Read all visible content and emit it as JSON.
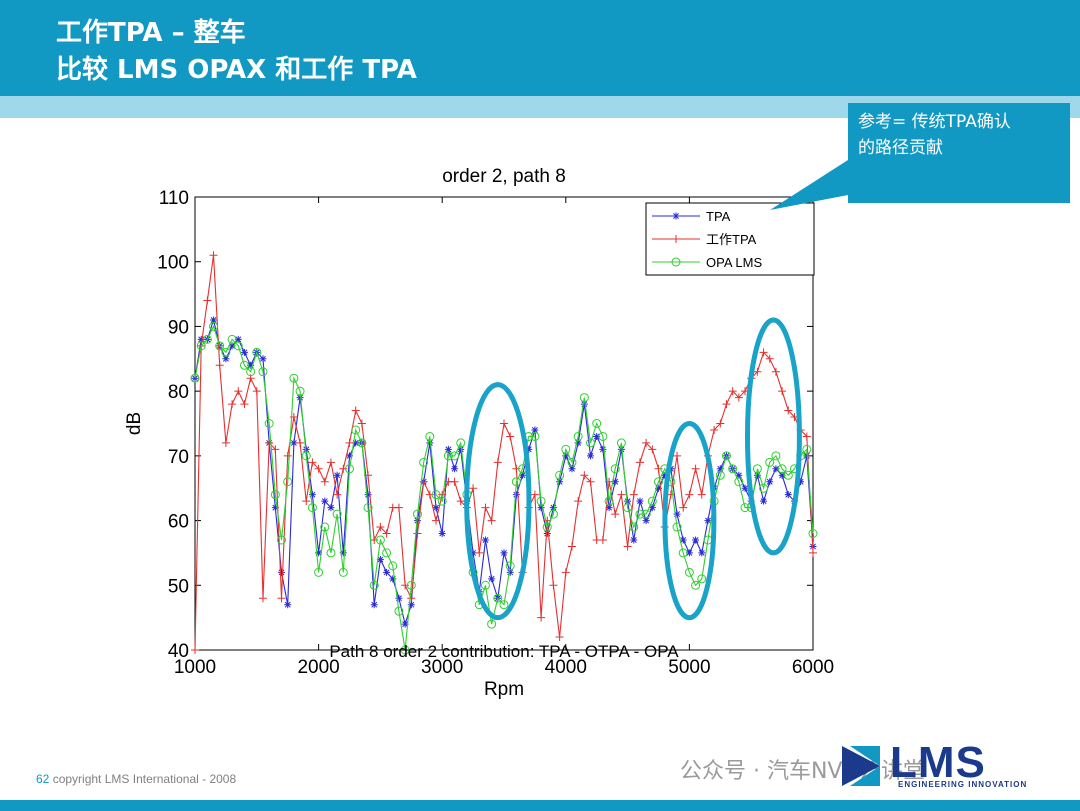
{
  "header": {
    "title_line1": "工作TPA – 整车",
    "title_line2": "比较 LMS OPAX 和工作 TPA"
  },
  "callout": {
    "text_line1": "参考= 传统TPA确认",
    "text_line2": "的路径贡献"
  },
  "colors": {
    "brand": "#1199c4",
    "brand_light": "#9fd8ea",
    "tpa": "#2a2ad8",
    "work_tpa": "#e53030",
    "opa_lms": "#2fcf2f",
    "highlight": "#1aa3c8"
  },
  "chart_data": {
    "type": "line",
    "title": "order 2, path 8",
    "xlabel": "Rpm",
    "ylabel": "dB",
    "xlim": [
      1000,
      6000
    ],
    "ylim": [
      40,
      110
    ],
    "xticks": [
      1000,
      2000,
      3000,
      4000,
      5000,
      6000
    ],
    "yticks": [
      40,
      50,
      60,
      70,
      80,
      90,
      100,
      110
    ],
    "legend_position": "top-right",
    "overlapped_caption": "Path 8 order 2 contribution: TPA - OTPA - OPA",
    "series": [
      {
        "name": "TPA",
        "marker": "*",
        "x": [
          1000,
          1050,
          1100,
          1150,
          1200,
          1250,
          1300,
          1350,
          1400,
          1450,
          1500,
          1550,
          1600,
          1650,
          1700,
          1750,
          1800,
          1850,
          1900,
          1950,
          2000,
          2050,
          2100,
          2150,
          2200,
          2250,
          2300,
          2350,
          2400,
          2450,
          2500,
          2550,
          2600,
          2650,
          2700,
          2750,
          2800,
          2850,
          2900,
          2950,
          3000,
          3050,
          3100,
          3150,
          3200,
          3250,
          3300,
          3350,
          3400,
          3450,
          3500,
          3550,
          3600,
          3650,
          3700,
          3750,
          3800,
          3850,
          3900,
          3950,
          4000,
          4050,
          4100,
          4150,
          4200,
          4250,
          4300,
          4350,
          4400,
          4450,
          4500,
          4550,
          4600,
          4650,
          4700,
          4750,
          4800,
          4850,
          4900,
          4950,
          5000,
          5050,
          5100,
          5150,
          5200,
          5250,
          5300,
          5350,
          5400,
          5450,
          5500,
          5550,
          5600,
          5650,
          5700,
          5750,
          5800,
          5850,
          5900,
          5950,
          6000
        ],
        "y": [
          82,
          88,
          88,
          91,
          87,
          85,
          87,
          88,
          86,
          84,
          86,
          85,
          72,
          62,
          52,
          47,
          72,
          79,
          71,
          64,
          55,
          63,
          62,
          67,
          55,
          70,
          72,
          72,
          64,
          47,
          54,
          52,
          51,
          48,
          44,
          47,
          60,
          66,
          72,
          62,
          58,
          71,
          68,
          71,
          63,
          55,
          49,
          57,
          51,
          48,
          55,
          52,
          64,
          67,
          71,
          74,
          62,
          58,
          62,
          66,
          70,
          68,
          72,
          78,
          70,
          73,
          71,
          62,
          66,
          71,
          63,
          57,
          63,
          60,
          62,
          65,
          67,
          68,
          61,
          57,
          55,
          57,
          55,
          60,
          65,
          68,
          70,
          68,
          67,
          65,
          63,
          67,
          63,
          66,
          68,
          67,
          64,
          63,
          66,
          70,
          56
        ]
      },
      {
        "name": "工作TPA",
        "marker": "+",
        "x": [
          1000,
          1050,
          1100,
          1150,
          1200,
          1250,
          1300,
          1350,
          1400,
          1450,
          1500,
          1550,
          1600,
          1650,
          1700,
          1750,
          1800,
          1850,
          1900,
          1950,
          2000,
          2050,
          2100,
          2150,
          2200,
          2250,
          2300,
          2350,
          2400,
          2450,
          2500,
          2550,
          2600,
          2650,
          2700,
          2750,
          2800,
          2850,
          2900,
          2950,
          3000,
          3050,
          3100,
          3150,
          3200,
          3250,
          3300,
          3350,
          3400,
          3450,
          3500,
          3550,
          3600,
          3650,
          3700,
          3750,
          3800,
          3850,
          3900,
          3950,
          4000,
          4050,
          4100,
          4150,
          4200,
          4250,
          4300,
          4350,
          4400,
          4450,
          4500,
          4550,
          4600,
          4650,
          4700,
          4750,
          4800,
          4850,
          4900,
          4950,
          5000,
          5050,
          5100,
          5150,
          5200,
          5250,
          5300,
          5350,
          5400,
          5450,
          5500,
          5550,
          5600,
          5650,
          5700,
          5750,
          5800,
          5850,
          5900,
          5950,
          6000
        ],
        "y": [
          40,
          87,
          94,
          101,
          84,
          72,
          78,
          80,
          78,
          82,
          80,
          48,
          72,
          71,
          48,
          70,
          76,
          72,
          63,
          69,
          68,
          66,
          69,
          64,
          68,
          72,
          77,
          75,
          67,
          57,
          59,
          58,
          62,
          62,
          50,
          48,
          58,
          66,
          64,
          60,
          64,
          66,
          66,
          63,
          62,
          65,
          55,
          62,
          60,
          69,
          75,
          73,
          68,
          52,
          62,
          64,
          45,
          60,
          50,
          42,
          52,
          56,
          63,
          67,
          66,
          57,
          57,
          66,
          61,
          64,
          56,
          64,
          69,
          72,
          71,
          68,
          59,
          64,
          70,
          62,
          64,
          68,
          64,
          70,
          74,
          75,
          78,
          80,
          79,
          80,
          82,
          83,
          86,
          85,
          83,
          80,
          77,
          76,
          74,
          73,
          55
        ]
      },
      {
        "name": "OPA LMS",
        "marker": "o",
        "x": [
          1000,
          1050,
          1100,
          1150,
          1200,
          1250,
          1300,
          1350,
          1400,
          1450,
          1500,
          1550,
          1600,
          1650,
          1700,
          1750,
          1800,
          1850,
          1900,
          1950,
          2000,
          2050,
          2100,
          2150,
          2200,
          2250,
          2300,
          2350,
          2400,
          2450,
          2500,
          2550,
          2600,
          2650,
          2700,
          2750,
          2800,
          2850,
          2900,
          2950,
          3000,
          3050,
          3100,
          3150,
          3200,
          3250,
          3300,
          3350,
          3400,
          3450,
          3500,
          3550,
          3600,
          3650,
          3700,
          3750,
          3800,
          3850,
          3900,
          3950,
          4000,
          4050,
          4100,
          4150,
          4200,
          4250,
          4300,
          4350,
          4400,
          4450,
          4500,
          4550,
          4600,
          4650,
          4700,
          4750,
          4800,
          4850,
          4900,
          4950,
          5000,
          5050,
          5100,
          5150,
          5200,
          5250,
          5300,
          5350,
          5400,
          5450,
          5500,
          5550,
          5600,
          5650,
          5700,
          5750,
          5800,
          5850,
          5900,
          5950,
          6000
        ],
        "y": [
          82,
          87,
          88,
          90,
          87,
          86,
          88,
          87,
          84,
          83,
          86,
          83,
          75,
          64,
          57,
          66,
          82,
          80,
          70,
          62,
          52,
          59,
          55,
          61,
          52,
          68,
          74,
          72,
          62,
          50,
          57,
          55,
          53,
          46,
          40,
          50,
          61,
          69,
          73,
          64,
          63,
          70,
          70,
          72,
          64,
          52,
          47,
          50,
          44,
          48,
          47,
          53,
          66,
          68,
          73,
          73,
          63,
          59,
          61,
          67,
          71,
          69,
          73,
          79,
          72,
          75,
          73,
          63,
          68,
          72,
          62,
          59,
          61,
          61,
          63,
          66,
          68,
          66,
          59,
          55,
          52,
          50,
          51,
          57,
          63,
          67,
          70,
          68,
          66,
          62,
          62,
          68,
          65,
          69,
          70,
          68,
          67,
          68,
          70,
          71,
          58
        ]
      }
    ],
    "highlight_ellipses": [
      {
        "cx": 3450,
        "cy": 63,
        "rx": 420,
        "ry": 18
      },
      {
        "cx": 5000,
        "cy": 60,
        "rx": 330,
        "ry": 15
      },
      {
        "cx": 5680,
        "cy": 73,
        "rx": 350,
        "ry": 18
      }
    ]
  },
  "footer": {
    "page_number": "62",
    "copyright": "copyright LMS International - 2008",
    "wechat": "公众号 · 汽车NVH云讲堂",
    "logo_text": "LMS",
    "logo_sub": "ENGINEERING INNOVATION"
  }
}
